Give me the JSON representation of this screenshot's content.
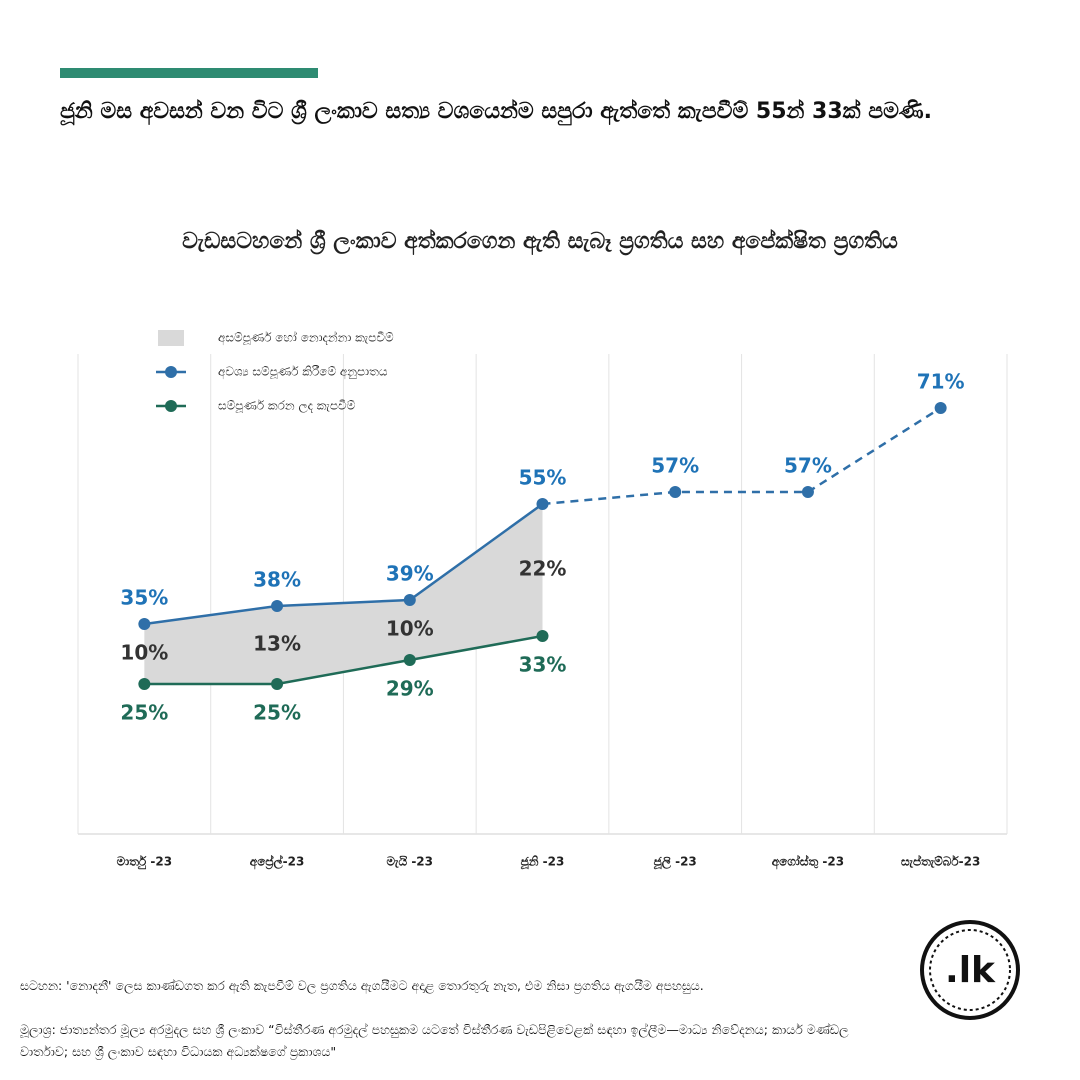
{
  "header": {
    "text": "ජූනි මස අවසන් වන විට ශ්‍රී ලංකාව සත්‍ය වශයෙන්ම සපුරා ඇත්තේ කැපවීම් 55න් 33ක් පමණි."
  },
  "chart_data": {
    "type": "line",
    "title": "වැඩසටහනේ ශ්‍රී ලංකාව අත්කරගෙන ඇති සැබෑ ප්‍රගතිය සහ අපේක්ෂිත ප්‍රගතිය",
    "categories": [
      "මාර්තු -23",
      "අප්‍රේල්-23",
      "මැයි -23",
      "ජූනි -23",
      "ජූලි -23",
      "අගෝස්තු -23",
      "සැප්තැම්බර්-23"
    ],
    "ylim": [
      0,
      80
    ],
    "series": [
      {
        "name": "අසම්පූර්ණ හෝ නොදන්නා කැපවීම්",
        "kind": "area",
        "base": 2,
        "color": "#d9d9d9",
        "label_color": "#333333",
        "values": [
          10,
          13,
          10,
          22,
          null,
          null,
          null
        ],
        "value_labels": [
          "10%",
          "13%",
          "10%",
          "22%",
          null,
          null,
          null
        ]
      },
      {
        "name": "අවශ්‍ය සම්පූර්ණ කිරීමේ අනුපාතය",
        "kind": "line",
        "dashed_from": 3,
        "color": "#2f6fa8",
        "label_color": "#1f73b7",
        "values": [
          35,
          38,
          39,
          55,
          57,
          57,
          71
        ],
        "value_labels": [
          "35%",
          "38%",
          "39%",
          "55%",
          "57%",
          "57%",
          "71%"
        ]
      },
      {
        "name": "සම්පූර්ණ කරන ලද කැපවීම්",
        "kind": "line",
        "color": "#1f6b57",
        "label_color": "#1f6b57",
        "values": [
          25,
          25,
          29,
          33,
          null,
          null,
          null
        ],
        "value_labels": [
          "25%",
          "25%",
          "29%",
          "33%",
          null,
          null,
          null
        ]
      }
    ]
  },
  "footer": {
    "note": "සටහන: 'නොදනී' ලෙස කාණ්ඩගත කර ඇති කැපවීම් වල ප්‍රගතිය ඇගයීමට අදාළ තොරතුරු නැත, එම නිසා ප්‍රගතිය ඇගයීම අපහසුය.",
    "source": "මූලාශ්‍ර: ජාත්‍යන්තර මූල්‍ය අරමුදල සහ ශ්‍රී ලංකාව “විස්තීරණ අරමුදල් පහසුකම යටතේ විස්තීරණ වැඩපිළිවෙළක් සඳහා ඉල්ලීම—මාධ්‍ය නිවේදනය; කාර්ය මණ්ඩල වාර්තාව; සහ ශ්‍රී ලංකාව සඳහා විධායක අධ්‍යක්ෂගේ ප්‍රකාශය\"",
    "logo": ".lk"
  }
}
